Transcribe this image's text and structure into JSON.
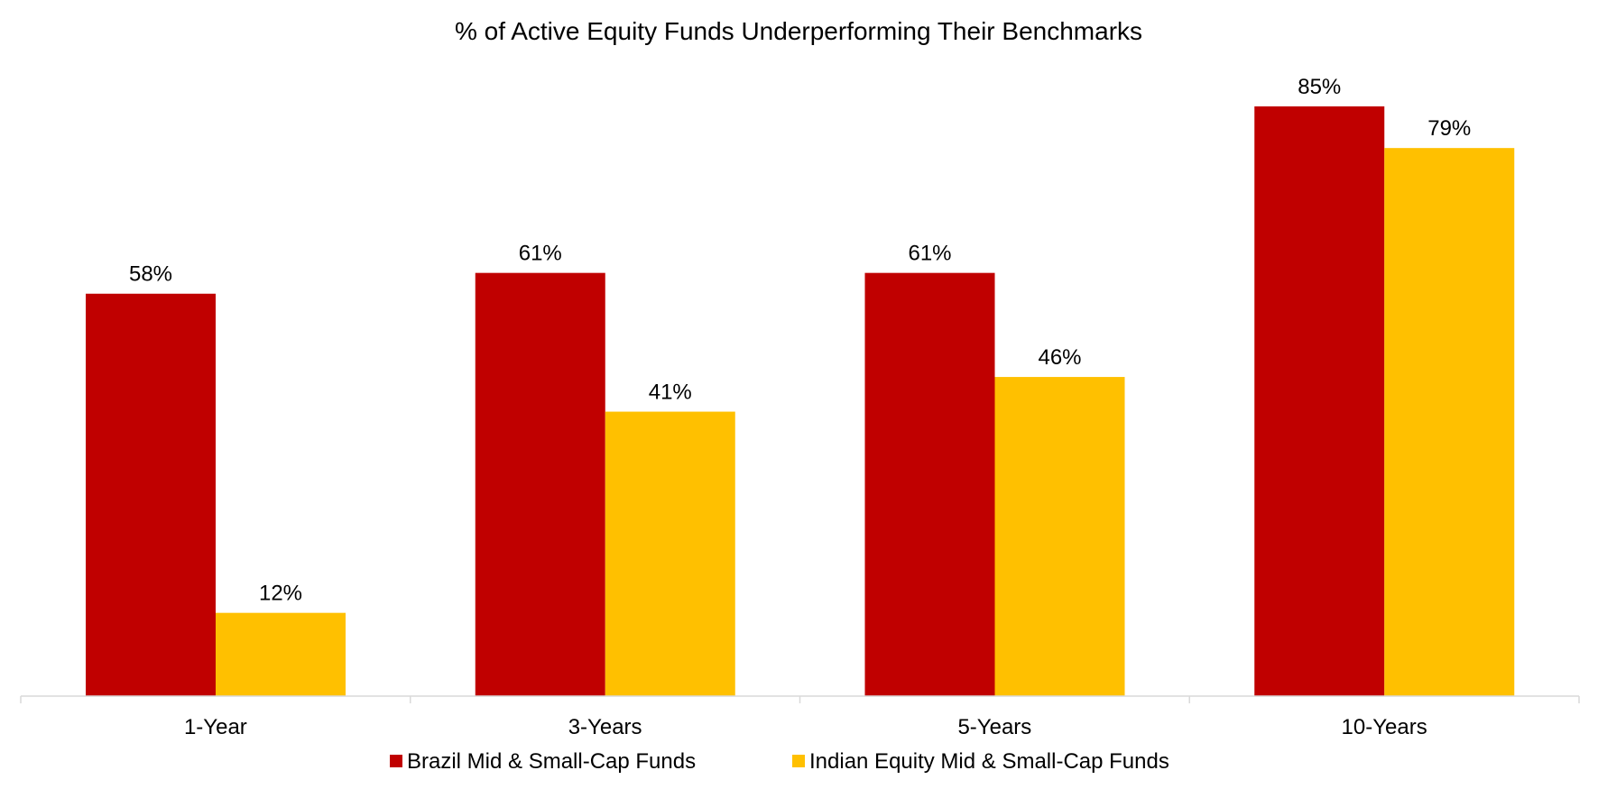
{
  "chart_data": {
    "type": "bar",
    "title": "% of Active Equity Funds Underperforming Their Benchmarks",
    "xlabel": "",
    "ylabel": "",
    "categories": [
      "1-Year",
      "3-Years",
      "5-Years",
      "10-Years"
    ],
    "series": [
      {
        "name": "Brazil Mid & Small-Cap Funds",
        "color": "#C00000",
        "values": [
          58,
          61,
          61,
          85
        ],
        "labels": [
          "58%",
          "61%",
          "61%",
          "85%"
        ]
      },
      {
        "name": "Indian Equity Mid & Small-Cap Funds",
        "color": "#FFC000",
        "values": [
          12,
          41,
          46,
          79
        ],
        "labels": [
          "12%",
          "41%",
          "46%",
          "79%"
        ]
      }
    ],
    "ylim": [
      0,
      85
    ],
    "grid": false,
    "legend_position": "bottom",
    "axis_color": "#D9D9D9"
  }
}
